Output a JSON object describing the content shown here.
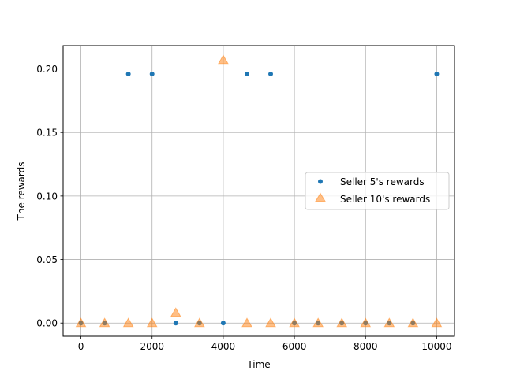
{
  "chart_data": {
    "type": "scatter",
    "xlabel": "Time",
    "ylabel": "The rewards",
    "xlim": [
      -500,
      10500
    ],
    "ylim": [
      -0.0104,
      0.2183
    ],
    "xticks": [
      0,
      2000,
      4000,
      6000,
      8000,
      10000
    ],
    "xtick_labels": [
      "0",
      "2000",
      "4000",
      "6000",
      "8000",
      "10000"
    ],
    "yticks": [
      0.0,
      0.05,
      0.1,
      0.15,
      0.2
    ],
    "ytick_labels": [
      "0.00",
      "0.05",
      "0.10",
      "0.15",
      "0.20"
    ],
    "grid": true,
    "legend_position": "center-right",
    "x": [
      0,
      667,
      1333,
      2000,
      2667,
      3333,
      4000,
      4667,
      5333,
      6000,
      6667,
      7333,
      8000,
      8667,
      9333,
      10000
    ],
    "series": [
      {
        "name": "Seller 5's rewards",
        "marker": "circle",
        "color": "#1f77b4",
        "values": [
          0.0,
          0.0,
          0.196,
          0.196,
          0.0,
          0.0,
          0.0,
          0.196,
          0.196,
          0.0,
          0.0,
          0.0,
          0.0,
          0.0,
          0.0,
          0.196
        ]
      },
      {
        "name": "Seller 10's rewards",
        "marker": "triangle",
        "color": "#ff7f0e",
        "values": [
          0.0,
          0.0,
          0.0,
          0.0,
          0.008,
          0.0,
          0.207,
          0.0,
          0.0,
          0.0,
          0.0,
          0.0,
          0.0,
          0.0,
          0.0,
          0.0
        ]
      }
    ]
  }
}
